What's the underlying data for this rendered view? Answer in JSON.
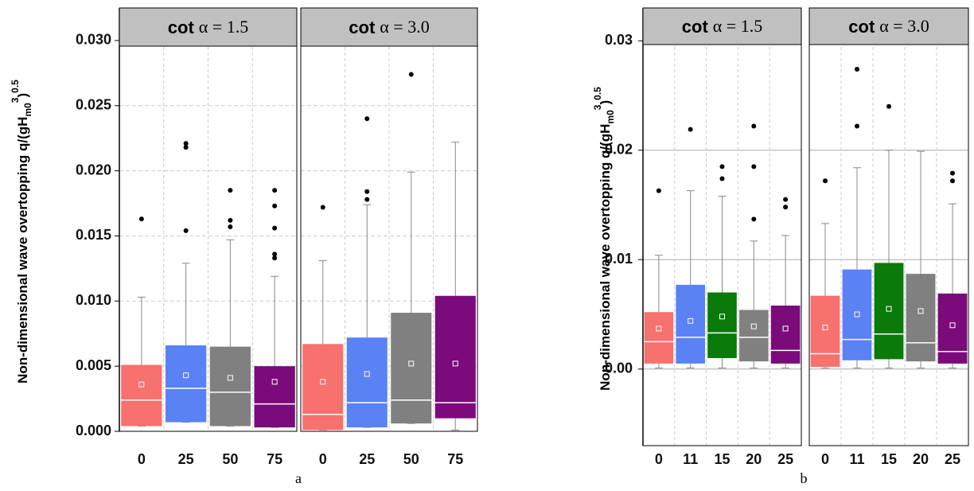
{
  "chart_data": [
    {
      "type": "box",
      "caption": "a",
      "ylabel": {
        "text": "Non-dimensional wave overtopping q/(gH",
        "sub": "m0",
        "sup": "3",
        "close": ")",
        "sup2": "0.5"
      },
      "ylim": [
        0,
        0.0325
      ],
      "yticks": [
        {
          "value": 0,
          "label": "0.000"
        },
        {
          "value": 0.005,
          "label": "0.005"
        },
        {
          "value": 0.01,
          "label": "0.010"
        },
        {
          "value": 0.015,
          "label": "0.015"
        },
        {
          "value": 0.02,
          "label": "0.020"
        },
        {
          "value": 0.025,
          "label": "0.025"
        },
        {
          "value": 0.03,
          "label": "0.030"
        }
      ],
      "grid": "dashed",
      "panels": [
        {
          "title_word": "cot",
          "title_expr": "α = 1.5",
          "categories": [
            "0",
            "25",
            "50",
            "75"
          ],
          "colors": [
            "#f7716e",
            "#5a82f5",
            "#808080",
            "#7b0a7b"
          ],
          "boxes": [
            {
              "low": 0.0004,
              "q1": 0.0004,
              "median": 0.0024,
              "q3": 0.0051,
              "high": 0.0103,
              "mean": 0.0036,
              "outliers": [
                0.0163
              ]
            },
            {
              "low": 0.0007,
              "q1": 0.0007,
              "median": 0.0033,
              "q3": 0.0066,
              "high": 0.0129,
              "mean": 0.0043,
              "outliers": [
                0.0154,
                0.0218,
                0.0221
              ]
            },
            {
              "low": 0.0004,
              "q1": 0.0004,
              "median": 0.003,
              "q3": 0.0065,
              "high": 0.0147,
              "mean": 0.0041,
              "outliers": [
                0.0157,
                0.0162,
                0.0185
              ]
            },
            {
              "low": 0.0003,
              "q1": 0.0003,
              "median": 0.0021,
              "q3": 0.005,
              "high": 0.0119,
              "mean": 0.0038,
              "outliers": [
                0.0133,
                0.0136,
                0.0156,
                0.0173,
                0.0185
              ]
            }
          ]
        },
        {
          "title_word": "cot",
          "title_expr": "α = 3.0",
          "categories": [
            "0",
            "25",
            "50",
            "75"
          ],
          "colors": [
            "#f7716e",
            "#5a82f5",
            "#808080",
            "#7b0a7b"
          ],
          "boxes": [
            {
              "low": 0.0001,
              "q1": 0.0001,
              "median": 0.0013,
              "q3": 0.0067,
              "high": 0.0131,
              "mean": 0.0038,
              "outliers": [
                0.0172
              ]
            },
            {
              "low": 0.0003,
              "q1": 0.0003,
              "median": 0.0022,
              "q3": 0.0072,
              "high": 0.0174,
              "mean": 0.0044,
              "outliers": [
                0.0178,
                0.0184,
                0.024
              ]
            },
            {
              "low": 0.0006,
              "q1": 0.0006,
              "median": 0.0024,
              "q3": 0.0091,
              "high": 0.0199,
              "mean": 0.0052,
              "outliers": [
                0.0274
              ]
            },
            {
              "low": 0.0001,
              "q1": 0.001,
              "median": 0.0022,
              "q3": 0.0104,
              "high": 0.0222,
              "mean": 0.0052,
              "outliers": []
            }
          ]
        }
      ]
    },
    {
      "type": "box",
      "caption": "b",
      "ylabel": {
        "text": "Non-dimensional wave overtopping q/(gH",
        "sub": "m0",
        "sup": "3",
        "close": ")",
        "sup2": "0.5"
      },
      "ylim": [
        -0.007,
        0.033
      ],
      "yticks": [
        {
          "value": 0,
          "label": "0.00"
        },
        {
          "value": 0.01,
          "label": "0.01"
        },
        {
          "value": 0.02,
          "label": "0.02"
        },
        {
          "value": 0.03,
          "label": "0.03"
        }
      ],
      "grid": "solid",
      "panels": [
        {
          "title_word": "cot",
          "title_expr": "α = 1.5",
          "categories": [
            "0",
            "11",
            "15",
            "20",
            "25"
          ],
          "colors": [
            "#f7716e",
            "#5a82f5",
            "#0a7a0a",
            "#808080",
            "#7b0a7b"
          ],
          "boxes": [
            {
              "low": 0.0001,
              "q1": 0.0005,
              "median": 0.0025,
              "q3": 0.0052,
              "high": 0.0104,
              "mean": 0.0037,
              "outliers": [
                0.0163
              ]
            },
            {
              "low": 0.0001,
              "q1": 0.0005,
              "median": 0.0029,
              "q3": 0.0077,
              "high": 0.0163,
              "mean": 0.0044,
              "outliers": [
                0.0219
              ]
            },
            {
              "low": 0.0001,
              "q1": 0.001,
              "median": 0.0033,
              "q3": 0.007,
              "high": 0.0158,
              "mean": 0.0048,
              "outliers": [
                0.0174,
                0.0185
              ]
            },
            {
              "low": 0.0001,
              "q1": 0.0007,
              "median": 0.0029,
              "q3": 0.0054,
              "high": 0.0117,
              "mean": 0.0039,
              "outliers": [
                0.0137,
                0.0185,
                0.0222
              ]
            },
            {
              "low": 0.0001,
              "q1": 0.0005,
              "median": 0.0017,
              "q3": 0.0058,
              "high": 0.0122,
              "mean": 0.0037,
              "outliers": [
                0.0148,
                0.0155
              ]
            }
          ]
        },
        {
          "title_word": "cot",
          "title_expr": "α = 3.0",
          "categories": [
            "0",
            "11",
            "15",
            "20",
            "25"
          ],
          "colors": [
            "#f7716e",
            "#5a82f5",
            "#0a7a0a",
            "#808080",
            "#7b0a7b"
          ],
          "boxes": [
            {
              "low": 0.0001,
              "q1": 0.0002,
              "median": 0.0014,
              "q3": 0.0067,
              "high": 0.0133,
              "mean": 0.0038,
              "outliers": [
                0.0172
              ]
            },
            {
              "low": 0.0001,
              "q1": 0.0008,
              "median": 0.0027,
              "q3": 0.0091,
              "high": 0.0184,
              "mean": 0.005,
              "outliers": [
                0.0222,
                0.0274
              ]
            },
            {
              "low": 0.0001,
              "q1": 0.0009,
              "median": 0.0032,
              "q3": 0.0097,
              "high": 0.02,
              "mean": 0.0055,
              "outliers": [
                0.024
              ]
            },
            {
              "low": 0.0001,
              "q1": 0.0007,
              "median": 0.0024,
              "q3": 0.0087,
              "high": 0.0199,
              "mean": 0.0053,
              "outliers": []
            },
            {
              "low": 0.0001,
              "q1": 0.0005,
              "median": 0.0016,
              "q3": 0.0069,
              "high": 0.0151,
              "mean": 0.004,
              "outliers": [
                0.0172,
                0.0179
              ]
            }
          ]
        }
      ]
    }
  ]
}
